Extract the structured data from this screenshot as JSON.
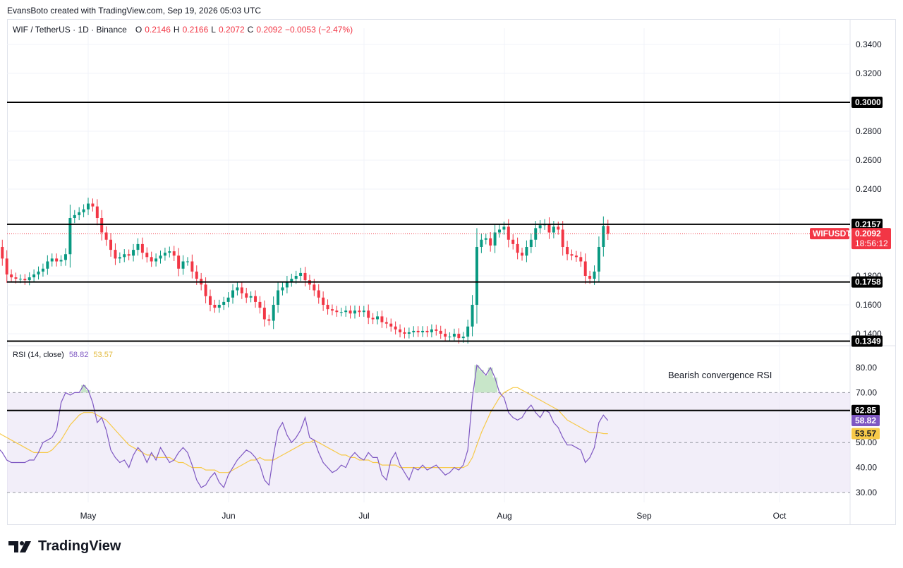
{
  "header": {
    "text": "EvansBoto created with TradingView.com, Sep 19, 2026 05:03 UTC"
  },
  "legend": {
    "symbol": "WIF / TetherUS · 1D · Binance",
    "o_label": "O",
    "o": "0.2146",
    "h_label": "H",
    "h": "0.2166",
    "l_label": "L",
    "l": "0.2072",
    "c_label": "C",
    "c": "0.2092",
    "change": "−0.0053 (−2.47%)"
  },
  "rsi_legend": {
    "label": "RSI (14, close)",
    "rsi": "58.82",
    "ma": "53.57"
  },
  "annotation": "Bearish convergence RSI",
  "footer": {
    "brand": "TradingView"
  },
  "colors": {
    "up": "#089981",
    "down": "#f23645",
    "rsi": "#7e57c2",
    "rsi_ma": "#f7c948",
    "band": "#ede7f6"
  },
  "chart_data": [
    {
      "type": "candlestick",
      "symbol": "WIFUSDT",
      "ylim": [
        0.135,
        0.352
      ],
      "yticks": [
        "0.3400",
        "0.3200",
        "0.2800",
        "0.2600",
        "0.2400",
        "0.1800",
        "0.1600",
        "0.1400"
      ],
      "xticks": [
        {
          "label": "May",
          "date": "2026-05-01"
        },
        {
          "label": "Jun",
          "date": "2026-06-01"
        },
        {
          "label": "Jul",
          "date": "2026-07-01"
        },
        {
          "label": "Aug",
          "date": "2026-08-01"
        },
        {
          "label": "Sep",
          "date": "2026-09-01"
        },
        {
          "label": "Oct",
          "date": "2026-10-01"
        }
      ],
      "start_date": "2026-04-02",
      "end_date": "2026-09-19",
      "horizontal_levels": [
        {
          "value": 0.3,
          "label": "0.3000"
        },
        {
          "value": 0.2157,
          "label": "0.2157"
        },
        {
          "value": 0.1758,
          "label": "0.1758"
        },
        {
          "value": 0.1349,
          "label": "0.1349"
        }
      ],
      "last_price": {
        "value": 0.2092,
        "label": "0.2092",
        "symbol": "WIFUSDT",
        "countdown": "18:56:12"
      },
      "ohlc_approx_closes": [
        0.205,
        0.21,
        0.208,
        0.212,
        0.215,
        0.209,
        0.208,
        0.21,
        0.205,
        0.2,
        0.192,
        0.181,
        0.179,
        0.178,
        0.178,
        0.177,
        0.179,
        0.181,
        0.183,
        0.185,
        0.19,
        0.192,
        0.19,
        0.191,
        0.195,
        0.22,
        0.222,
        0.224,
        0.226,
        0.23,
        0.228,
        0.22,
        0.21,
        0.205,
        0.198,
        0.192,
        0.193,
        0.195,
        0.194,
        0.198,
        0.202,
        0.196,
        0.193,
        0.19,
        0.192,
        0.194,
        0.196,
        0.197,
        0.194,
        0.185,
        0.19,
        0.19,
        0.183,
        0.178,
        0.174,
        0.166,
        0.16,
        0.158,
        0.16,
        0.162,
        0.165,
        0.17,
        0.172,
        0.168,
        0.165,
        0.166,
        0.162,
        0.158,
        0.15,
        0.149,
        0.16,
        0.17,
        0.172,
        0.176,
        0.178,
        0.18,
        0.182,
        0.177,
        0.174,
        0.17,
        0.165,
        0.16,
        0.157,
        0.156,
        0.155,
        0.155,
        0.156,
        0.154,
        0.156,
        0.155,
        0.156,
        0.151,
        0.15,
        0.152,
        0.148,
        0.147,
        0.145,
        0.143,
        0.141,
        0.14,
        0.141,
        0.142,
        0.141,
        0.142,
        0.141,
        0.143,
        0.142,
        0.14,
        0.138,
        0.138,
        0.14,
        0.137,
        0.138,
        0.145,
        0.16,
        0.2,
        0.205,
        0.206,
        0.201,
        0.21,
        0.212,
        0.214,
        0.205,
        0.202,
        0.196,
        0.194,
        0.2,
        0.205,
        0.213,
        0.215,
        0.216,
        0.21,
        0.214,
        0.212,
        0.2,
        0.195,
        0.194,
        0.193,
        0.19,
        0.18,
        0.178,
        0.183,
        0.2,
        0.2145,
        0.2092
      ]
    },
    {
      "type": "line",
      "title": "RSI (14, close)",
      "ylim": [
        26,
        84
      ],
      "yticks": [
        "80.00",
        "70.00",
        "50.00",
        "40.00",
        "30.00"
      ],
      "band": [
        30,
        70
      ],
      "horizontal_levels": [
        {
          "value": 62.85,
          "label": "62.85"
        }
      ],
      "current": {
        "rsi": "58.82",
        "ma": "53.57"
      },
      "series": [
        {
          "name": "RSI",
          "values": [
            58,
            54,
            60,
            64,
            58,
            52,
            52,
            54,
            50,
            48,
            46,
            43,
            42,
            42,
            42,
            42,
            43,
            43,
            46,
            50,
            51,
            52,
            55,
            66,
            70,
            69,
            70,
            70,
            73,
            71,
            66,
            58,
            60,
            55,
            47,
            44,
            42,
            43,
            40,
            45,
            48,
            46,
            42,
            46,
            43,
            48,
            45,
            42,
            43,
            46,
            48,
            46,
            41,
            35,
            32,
            33,
            36,
            38,
            34,
            32,
            37,
            40,
            43,
            45,
            47,
            46,
            44,
            41,
            35,
            33,
            45,
            55,
            58,
            53,
            50,
            52,
            55,
            60,
            52,
            51,
            46,
            42,
            40,
            38,
            39,
            41,
            40,
            44,
            46,
            44,
            43,
            46,
            44,
            44,
            37,
            35,
            43,
            46,
            41,
            38,
            35,
            40,
            39,
            41,
            39,
            40,
            41,
            39,
            37,
            38,
            40,
            39,
            41,
            47,
            68,
            81,
            79,
            77,
            80,
            76,
            70,
            68,
            62,
            60,
            59,
            60,
            63,
            65,
            62,
            60,
            63,
            62,
            58,
            56,
            52,
            49,
            49,
            48,
            47,
            42,
            44,
            48,
            58,
            61,
            58.82
          ]
        },
        {
          "name": "MA",
          "values": [
            55,
            55,
            55,
            56,
            57,
            56,
            55,
            55,
            54,
            54,
            53,
            52,
            51,
            50,
            49,
            48,
            47,
            46,
            46,
            46,
            46,
            47,
            49,
            51,
            54,
            57,
            59,
            61,
            62,
            62,
            62,
            61,
            60,
            59,
            57,
            55,
            53,
            51,
            49,
            48,
            47,
            46,
            45,
            45,
            44,
            44,
            44,
            44,
            43,
            42,
            42,
            41,
            40,
            40,
            40,
            39,
            39,
            39,
            38,
            38,
            38,
            39,
            40,
            41,
            42,
            43,
            43,
            44,
            43,
            43,
            43,
            44,
            45,
            46,
            47,
            48,
            49,
            50,
            50,
            51,
            50,
            49,
            48,
            47,
            46,
            45,
            45,
            44,
            44,
            43,
            43,
            43,
            42,
            42,
            41,
            41,
            41,
            41,
            40,
            40,
            40,
            40,
            40,
            40,
            40,
            40,
            40,
            40,
            40,
            40,
            40,
            40,
            40,
            41,
            44,
            49,
            54,
            58,
            62,
            65,
            68,
            70,
            71,
            72,
            72,
            71,
            70,
            69,
            68,
            67,
            66,
            65,
            64,
            63,
            61,
            59,
            58,
            57,
            56,
            55,
            54,
            54,
            54,
            53.6,
            53.57
          ]
        }
      ]
    }
  ]
}
